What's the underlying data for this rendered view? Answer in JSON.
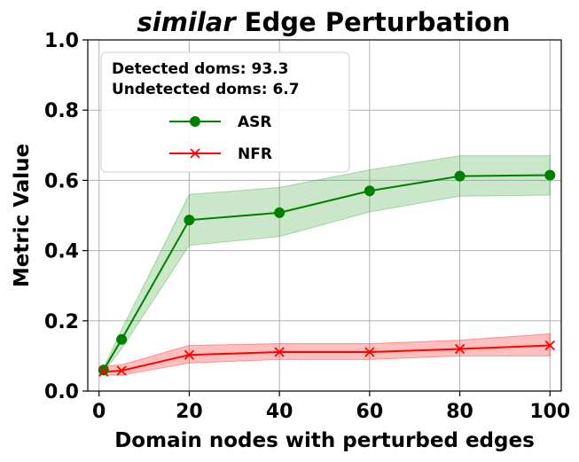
{
  "chart_data": {
    "type": "line",
    "title_emphasis": "similar",
    "title_rest": "Edge Perturbation",
    "xlabel": "Domain nodes with perturbed edges",
    "ylabel": "Metric Value",
    "xlim": [
      -2.5,
      102.5
    ],
    "ylim": [
      0.0,
      1.0
    ],
    "xticks": [
      0,
      20,
      40,
      60,
      80,
      100
    ],
    "yticks": [
      0.0,
      0.2,
      0.4,
      0.6,
      0.8,
      1.0
    ],
    "xtick_labels": [
      "0",
      "20",
      "40",
      "60",
      "80",
      "100"
    ],
    "ytick_labels": [
      "0.0",
      "0.2",
      "0.4",
      "0.6",
      "0.8",
      "1.0"
    ],
    "grid": true,
    "legend": {
      "placement": "top-left",
      "header_lines": [
        "Detected doms: 93.3",
        "Undetected doms: 6.7"
      ]
    },
    "x": [
      1,
      5,
      20,
      40,
      60,
      80,
      100
    ],
    "series": [
      {
        "name": "ASR",
        "color": "#008000",
        "fill_color": "#2ca02c",
        "marker": "circle",
        "values": [
          0.06,
          0.147,
          0.487,
          0.508,
          0.57,
          0.612,
          0.615
        ],
        "lower": [
          0.055,
          0.12,
          0.415,
          0.44,
          0.51,
          0.555,
          0.558
        ],
        "upper": [
          0.065,
          0.175,
          0.56,
          0.58,
          0.63,
          0.67,
          0.67
        ]
      },
      {
        "name": "NFR",
        "color": "#ff0000",
        "fill_color": "#ff0000",
        "marker": "x",
        "values": [
          0.055,
          0.058,
          0.103,
          0.111,
          0.111,
          0.12,
          0.13
        ],
        "lower": [
          0.045,
          0.045,
          0.08,
          0.09,
          0.09,
          0.1,
          0.1
        ],
        "upper": [
          0.07,
          0.075,
          0.13,
          0.135,
          0.135,
          0.145,
          0.163
        ]
      }
    ]
  }
}
